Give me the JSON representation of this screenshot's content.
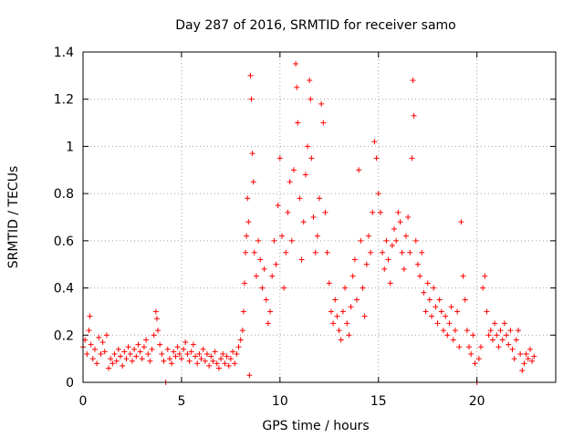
{
  "chart_data": {
    "type": "scatter",
    "title": "Day 287 of 2016, SRMTID for receiver samo",
    "xlabel": "GPS time / hours",
    "ylabel": "SRMTID / TECUs",
    "xlim": [
      0,
      24
    ],
    "ylim": [
      0,
      1.4
    ],
    "xticks": [
      0,
      5,
      10,
      15,
      20
    ],
    "yticks": [
      0,
      0.2,
      0.4,
      0.6,
      0.8,
      1.0,
      1.2,
      1.4
    ],
    "xtick_labels": [
      "0",
      "5",
      "10",
      "15",
      "20"
    ],
    "ytick_labels": [
      "0",
      "0.2",
      "0.4",
      "0.6",
      "0.8",
      "1",
      "1.2",
      "1.4"
    ],
    "grid": true,
    "marker": "+",
    "color": "#ff0000",
    "series": [
      {
        "name": "SRMTID",
        "points": [
          [
            0.0,
            0.15
          ],
          [
            0.1,
            0.18
          ],
          [
            0.2,
            0.12
          ],
          [
            0.3,
            0.22
          ],
          [
            0.35,
            0.28
          ],
          [
            0.4,
            0.16
          ],
          [
            0.5,
            0.1
          ],
          [
            0.6,
            0.14
          ],
          [
            0.7,
            0.08
          ],
          [
            0.8,
            0.19
          ],
          [
            0.9,
            0.12
          ],
          [
            1.0,
            0.17
          ],
          [
            1.1,
            0.13
          ],
          [
            1.2,
            0.2
          ],
          [
            1.3,
            0.06
          ],
          [
            1.4,
            0.1
          ],
          [
            1.5,
            0.08
          ],
          [
            1.6,
            0.12
          ],
          [
            1.7,
            0.09
          ],
          [
            1.8,
            0.14
          ],
          [
            1.9,
            0.11
          ],
          [
            2.0,
            0.07
          ],
          [
            2.1,
            0.13
          ],
          [
            2.2,
            0.1
          ],
          [
            2.3,
            0.15
          ],
          [
            2.4,
            0.12
          ],
          [
            2.5,
            0.09
          ],
          [
            2.6,
            0.14
          ],
          [
            2.7,
            0.11
          ],
          [
            2.8,
            0.16
          ],
          [
            2.9,
            0.13
          ],
          [
            3.0,
            0.1
          ],
          [
            3.1,
            0.15
          ],
          [
            3.2,
            0.18
          ],
          [
            3.3,
            0.12
          ],
          [
            3.4,
            0.09
          ],
          [
            3.5,
            0.14
          ],
          [
            3.6,
            0.2
          ],
          [
            3.7,
            0.3
          ],
          [
            3.75,
            0.27
          ],
          [
            3.8,
            0.22
          ],
          [
            3.9,
            0.16
          ],
          [
            4.0,
            0.12
          ],
          [
            4.1,
            0.09
          ],
          [
            4.2,
            0.0
          ],
          [
            4.3,
            0.14
          ],
          [
            4.4,
            0.1
          ],
          [
            4.5,
            0.08
          ],
          [
            4.6,
            0.13
          ],
          [
            4.7,
            0.11
          ],
          [
            4.8,
            0.15
          ],
          [
            4.9,
            0.12
          ],
          [
            5.0,
            0.1
          ],
          [
            5.1,
            0.14
          ],
          [
            5.2,
            0.17
          ],
          [
            5.3,
            0.12
          ],
          [
            5.4,
            0.09
          ],
          [
            5.5,
            0.13
          ],
          [
            5.6,
            0.16
          ],
          [
            5.7,
            0.11
          ],
          [
            5.8,
            0.08
          ],
          [
            5.9,
            0.12
          ],
          [
            6.0,
            0.1
          ],
          [
            6.1,
            0.14
          ],
          [
            6.2,
            0.09
          ],
          [
            6.3,
            0.12
          ],
          [
            6.4,
            0.07
          ],
          [
            6.5,
            0.11
          ],
          [
            6.6,
            0.09
          ],
          [
            6.7,
            0.13
          ],
          [
            6.8,
            0.08
          ],
          [
            6.9,
            0.06
          ],
          [
            7.0,
            0.1
          ],
          [
            7.1,
            0.12
          ],
          [
            7.2,
            0.08
          ],
          [
            7.3,
            0.11
          ],
          [
            7.4,
            0.07
          ],
          [
            7.5,
            0.1
          ],
          [
            7.6,
            0.13
          ],
          [
            7.7,
            0.08
          ],
          [
            7.8,
            0.12
          ],
          [
            7.9,
            0.15
          ],
          [
            8.0,
            0.18
          ],
          [
            8.1,
            0.22
          ],
          [
            8.15,
            0.3
          ],
          [
            8.2,
            0.42
          ],
          [
            8.25,
            0.55
          ],
          [
            8.3,
            0.62
          ],
          [
            8.35,
            0.78
          ],
          [
            8.4,
            0.68
          ],
          [
            8.45,
            0.03
          ],
          [
            8.5,
            1.3
          ],
          [
            8.55,
            1.2
          ],
          [
            8.6,
            0.97
          ],
          [
            8.65,
            0.85
          ],
          [
            8.7,
            0.55
          ],
          [
            8.8,
            0.45
          ],
          [
            8.9,
            0.6
          ],
          [
            9.0,
            0.52
          ],
          [
            9.1,
            0.4
          ],
          [
            9.2,
            0.48
          ],
          [
            9.3,
            0.35
          ],
          [
            9.4,
            0.25
          ],
          [
            9.5,
            0.3
          ],
          [
            9.6,
            0.45
          ],
          [
            9.7,
            0.6
          ],
          [
            9.8,
            0.5
          ],
          [
            9.9,
            0.75
          ],
          [
            10.0,
            0.95
          ],
          [
            10.1,
            0.62
          ],
          [
            10.2,
            0.4
          ],
          [
            10.3,
            0.55
          ],
          [
            10.4,
            0.72
          ],
          [
            10.5,
            0.85
          ],
          [
            10.6,
            0.6
          ],
          [
            10.7,
            0.9
          ],
          [
            10.8,
            1.35
          ],
          [
            10.85,
            1.25
          ],
          [
            10.9,
            1.1
          ],
          [
            11.0,
            0.78
          ],
          [
            11.1,
            0.52
          ],
          [
            11.2,
            0.68
          ],
          [
            11.3,
            0.88
          ],
          [
            11.4,
            1.0
          ],
          [
            11.5,
            1.28
          ],
          [
            11.55,
            1.2
          ],
          [
            11.6,
            0.95
          ],
          [
            11.7,
            0.7
          ],
          [
            11.8,
            0.55
          ],
          [
            11.9,
            0.62
          ],
          [
            12.0,
            0.78
          ],
          [
            12.1,
            1.18
          ],
          [
            12.2,
            1.1
          ],
          [
            12.3,
            0.72
          ],
          [
            12.4,
            0.55
          ],
          [
            12.5,
            0.42
          ],
          [
            12.6,
            0.3
          ],
          [
            12.7,
            0.25
          ],
          [
            12.8,
            0.35
          ],
          [
            12.9,
            0.28
          ],
          [
            13.0,
            0.22
          ],
          [
            13.1,
            0.18
          ],
          [
            13.2,
            0.3
          ],
          [
            13.3,
            0.4
          ],
          [
            13.4,
            0.25
          ],
          [
            13.5,
            0.2
          ],
          [
            13.6,
            0.32
          ],
          [
            13.7,
            0.45
          ],
          [
            13.8,
            0.52
          ],
          [
            13.9,
            0.35
          ],
          [
            14.0,
            0.9
          ],
          [
            14.1,
            0.6
          ],
          [
            14.2,
            0.4
          ],
          [
            14.3,
            0.28
          ],
          [
            14.4,
            0.5
          ],
          [
            14.5,
            0.62
          ],
          [
            14.6,
            0.55
          ],
          [
            14.7,
            0.72
          ],
          [
            14.8,
            1.02
          ],
          [
            14.9,
            0.95
          ],
          [
            15.0,
            0.8
          ],
          [
            15.1,
            0.72
          ],
          [
            15.2,
            0.55
          ],
          [
            15.3,
            0.48
          ],
          [
            15.4,
            0.6
          ],
          [
            15.5,
            0.52
          ],
          [
            15.6,
            0.42
          ],
          [
            15.7,
            0.58
          ],
          [
            15.8,
            0.65
          ],
          [
            15.9,
            0.6
          ],
          [
            16.0,
            0.72
          ],
          [
            16.1,
            0.68
          ],
          [
            16.2,
            0.55
          ],
          [
            16.3,
            0.48
          ],
          [
            16.4,
            0.62
          ],
          [
            16.5,
            0.7
          ],
          [
            16.6,
            0.55
          ],
          [
            16.7,
            0.95
          ],
          [
            16.75,
            1.28
          ],
          [
            16.8,
            1.13
          ],
          [
            16.9,
            0.6
          ],
          [
            17.0,
            0.5
          ],
          [
            17.1,
            0.45
          ],
          [
            17.2,
            0.55
          ],
          [
            17.3,
            0.38
          ],
          [
            17.4,
            0.3
          ],
          [
            17.5,
            0.42
          ],
          [
            17.6,
            0.35
          ],
          [
            17.7,
            0.28
          ],
          [
            17.8,
            0.4
          ],
          [
            17.9,
            0.32
          ],
          [
            18.0,
            0.25
          ],
          [
            18.1,
            0.35
          ],
          [
            18.2,
            0.3
          ],
          [
            18.3,
            0.22
          ],
          [
            18.4,
            0.28
          ],
          [
            18.5,
            0.2
          ],
          [
            18.6,
            0.25
          ],
          [
            18.7,
            0.32
          ],
          [
            18.8,
            0.18
          ],
          [
            18.9,
            0.22
          ],
          [
            19.0,
            0.3
          ],
          [
            19.1,
            0.15
          ],
          [
            19.2,
            0.68
          ],
          [
            19.3,
            0.45
          ],
          [
            19.4,
            0.35
          ],
          [
            19.5,
            0.22
          ],
          [
            19.6,
            0.15
          ],
          [
            19.7,
            0.12
          ],
          [
            19.8,
            0.2
          ],
          [
            19.9,
            0.08
          ],
          [
            20.0,
            0.0
          ],
          [
            20.1,
            0.1
          ],
          [
            20.2,
            0.15
          ],
          [
            20.3,
            0.4
          ],
          [
            20.4,
            0.45
          ],
          [
            20.5,
            0.3
          ],
          [
            20.6,
            0.2
          ],
          [
            20.7,
            0.22
          ],
          [
            20.8,
            0.18
          ],
          [
            20.9,
            0.25
          ],
          [
            21.0,
            0.2
          ],
          [
            21.1,
            0.15
          ],
          [
            21.2,
            0.22
          ],
          [
            21.3,
            0.18
          ],
          [
            21.4,
            0.25
          ],
          [
            21.5,
            0.2
          ],
          [
            21.6,
            0.16
          ],
          [
            21.7,
            0.22
          ],
          [
            21.8,
            0.14
          ],
          [
            21.9,
            0.1
          ],
          [
            22.0,
            0.18
          ],
          [
            22.1,
            0.22
          ],
          [
            22.2,
            0.12
          ],
          [
            22.3,
            0.05
          ],
          [
            22.4,
            0.08
          ],
          [
            22.5,
            0.12
          ],
          [
            22.6,
            0.1
          ],
          [
            22.7,
            0.14
          ],
          [
            22.8,
            0.09
          ],
          [
            22.9,
            0.11
          ]
        ]
      }
    ]
  }
}
